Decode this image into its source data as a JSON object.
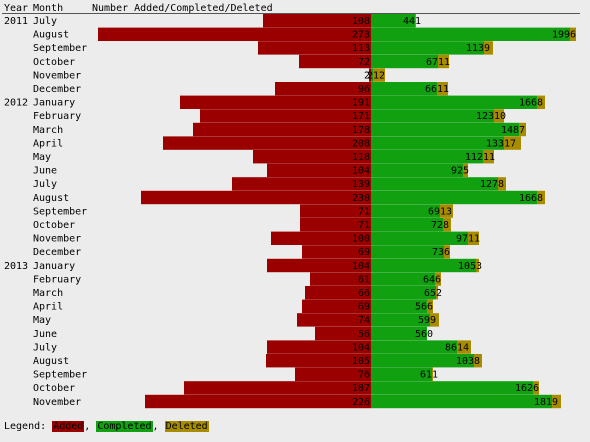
{
  "header": {
    "year": "Year",
    "month": "Month",
    "series": "Number Added/Completed/Deleted"
  },
  "legend": {
    "prefix": "Legend: ",
    "added": "Added",
    "sep1": ", ",
    "completed": "Completed",
    "sep2": ", ",
    "deleted": "Deleted"
  },
  "colors": {
    "added": "#9a0000",
    "completed": "#10a010",
    "deleted": "#a88c00",
    "background": "#ececec"
  },
  "chart_data": {
    "type": "bar",
    "title": "Number Added/Completed/Deleted",
    "xlabel": "",
    "ylabel": "",
    "legend": "bottom-left",
    "series": [
      {
        "name": "Added"
      },
      {
        "name": "Completed"
      },
      {
        "name": "Deleted"
      }
    ],
    "rows": [
      {
        "year": "2011",
        "month": "July",
        "added": 108,
        "completed": 44,
        "deleted": 1
      },
      {
        "year": "",
        "month": "August",
        "added": 273,
        "completed": 199,
        "deleted": 6
      },
      {
        "year": "",
        "month": "September",
        "added": 113,
        "completed": 113,
        "deleted": 9
      },
      {
        "year": "",
        "month": "October",
        "added": 72,
        "completed": 67,
        "deleted": 11
      },
      {
        "year": "",
        "month": "November",
        "added": 2,
        "completed": 2,
        "deleted": 12
      },
      {
        "year": "",
        "month": "December",
        "added": 96,
        "completed": 66,
        "deleted": 11
      },
      {
        "year": "2012",
        "month": "January",
        "added": 191,
        "completed": 166,
        "deleted": 8
      },
      {
        "year": "",
        "month": "February",
        "added": 171,
        "completed": 123,
        "deleted": 10
      },
      {
        "year": "",
        "month": "March",
        "added": 178,
        "completed": 148,
        "deleted": 7
      },
      {
        "year": "",
        "month": "April",
        "added": 208,
        "completed": 133,
        "deleted": 17
      },
      {
        "year": "",
        "month": "May",
        "added": 118,
        "completed": 112,
        "deleted": 11
      },
      {
        "year": "",
        "month": "June",
        "added": 104,
        "completed": 92,
        "deleted": 5
      },
      {
        "year": "",
        "month": "July",
        "added": 139,
        "completed": 127,
        "deleted": 8
      },
      {
        "year": "",
        "month": "August",
        "added": 230,
        "completed": 166,
        "deleted": 8
      },
      {
        "year": "",
        "month": "September",
        "added": 71,
        "completed": 69,
        "deleted": 13
      },
      {
        "year": "",
        "month": "October",
        "added": 71,
        "completed": 72,
        "deleted": 8
      },
      {
        "year": "",
        "month": "November",
        "added": 100,
        "completed": 97,
        "deleted": 11
      },
      {
        "year": "",
        "month": "December",
        "added": 69,
        "completed": 73,
        "deleted": 6
      },
      {
        "year": "2013",
        "month": "January",
        "added": 104,
        "completed": 105,
        "deleted": 3
      },
      {
        "year": "",
        "month": "February",
        "added": 61,
        "completed": 64,
        "deleted": 6
      },
      {
        "year": "",
        "month": "March",
        "added": 66,
        "completed": 65,
        "deleted": 2
      },
      {
        "year": "",
        "month": "April",
        "added": 69,
        "completed": 56,
        "deleted": 6
      },
      {
        "year": "",
        "month": "May",
        "added": 74,
        "completed": 59,
        "deleted": 9
      },
      {
        "year": "",
        "month": "June",
        "added": 56,
        "completed": 56,
        "deleted": 0
      },
      {
        "year": "",
        "month": "July",
        "added": 104,
        "completed": 86,
        "deleted": 14
      },
      {
        "year": "",
        "month": "August",
        "added": 105,
        "completed": 103,
        "deleted": 8
      },
      {
        "year": "",
        "month": "September",
        "added": 76,
        "completed": 61,
        "deleted": 1
      },
      {
        "year": "",
        "month": "October",
        "added": 187,
        "completed": 162,
        "deleted": 6
      },
      {
        "year": "",
        "month": "November",
        "added": 226,
        "completed": 181,
        "deleted": 9
      }
    ]
  }
}
